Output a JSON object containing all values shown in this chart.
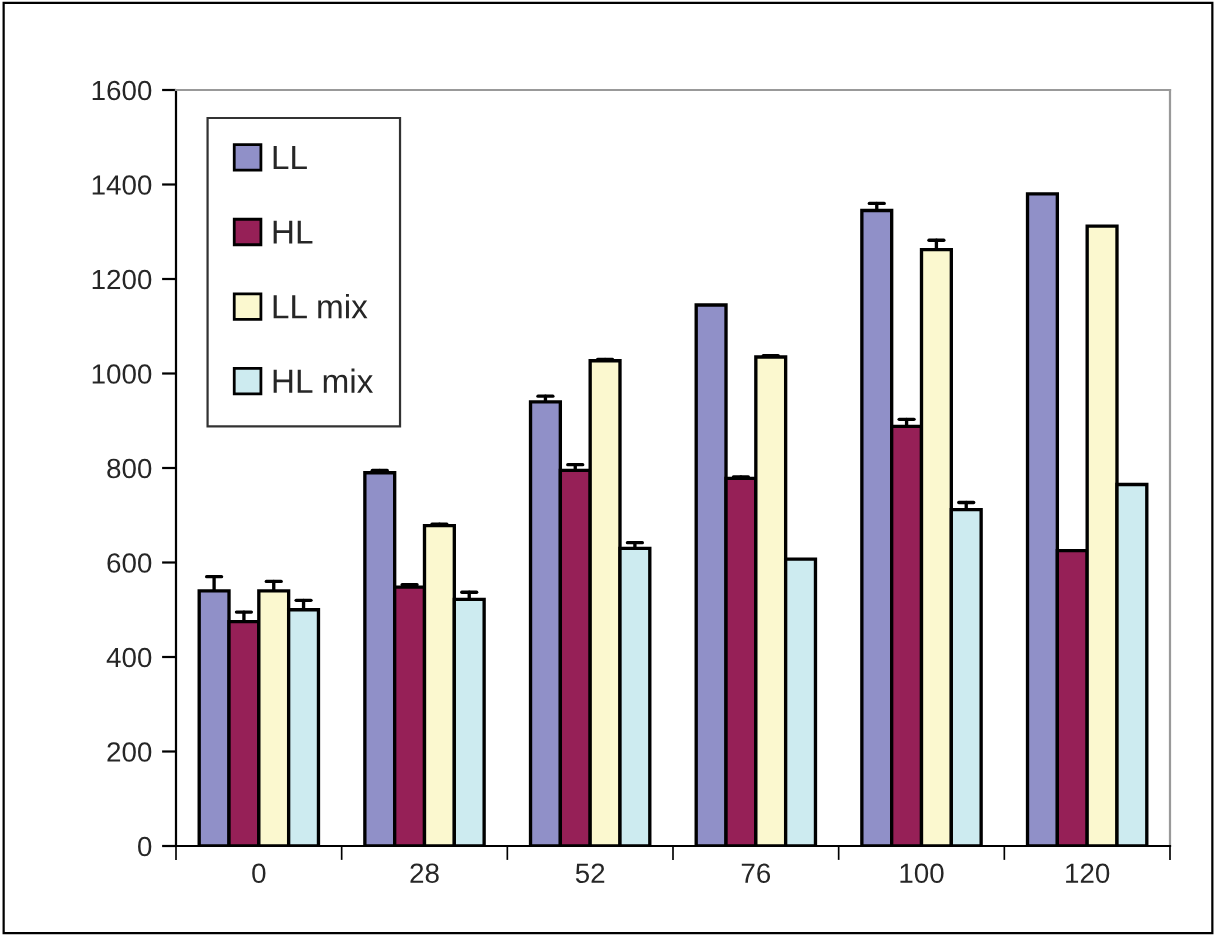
{
  "chart_data": {
    "type": "bar",
    "categories": [
      "0",
      "28",
      "52",
      "76",
      "100",
      "120"
    ],
    "series": [
      {
        "name": "LL",
        "color": "#9090c8",
        "values": [
          540,
          790,
          940,
          1145,
          1345,
          1380
        ],
        "errors": [
          [
            540,
            570
          ],
          [
            790,
            795
          ],
          [
            940,
            952
          ],
          null,
          [
            1345,
            1360
          ],
          null
        ]
      },
      {
        "name": "HL",
        "color": "#962057",
        "values": [
          475,
          548,
          795,
          778,
          888,
          625
        ],
        "errors": [
          [
            475,
            495
          ],
          [
            548,
            553
          ],
          [
            795,
            807
          ],
          [
            778,
            781
          ],
          [
            888,
            903
          ],
          null
        ]
      },
      {
        "name": "LL mix",
        "color": "#fbf8cf",
        "values": [
          540,
          678,
          1027,
          1035,
          1262,
          1312
        ],
        "errors": [
          [
            540,
            560
          ],
          [
            678,
            681
          ],
          [
            1027,
            1030
          ],
          [
            1035,
            1038
          ],
          [
            1262,
            1282
          ],
          null
        ]
      },
      {
        "name": "HL mix",
        "color": "#cdebf0",
        "values": [
          500,
          522,
          630,
          607,
          712,
          765
        ],
        "errors": [
          [
            500,
            520
          ],
          [
            522,
            537
          ],
          [
            630,
            642
          ],
          null,
          [
            712,
            727
          ],
          null
        ]
      }
    ],
    "ylim": [
      0,
      1600
    ],
    "yticks": [
      0,
      200,
      400,
      600,
      800,
      1000,
      1200,
      1400,
      1600
    ],
    "grid": false,
    "legend": "top left"
  }
}
